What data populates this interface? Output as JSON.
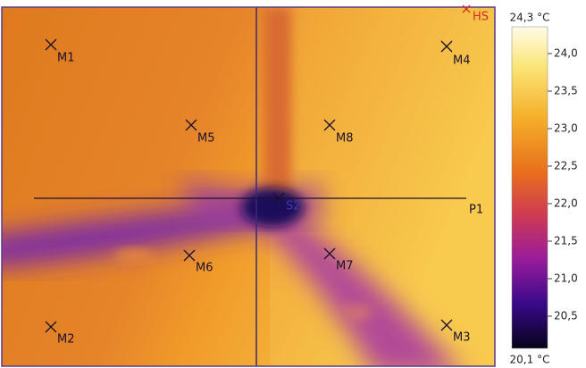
{
  "markers": [
    "M1",
    "M2",
    "M3",
    "M4",
    "M5",
    "M6",
    "M7",
    "M8"
  ],
  "spot": "S2",
  "hot_spot": "HS",
  "profile_line": "P1",
  "scale": {
    "max": "24,3 °C",
    "min": "20,1 °C",
    "ticks": [
      "24,0",
      "23,5",
      "23,0",
      "22,5",
      "22,0",
      "21,5",
      "21,0",
      "20,5"
    ]
  }
}
